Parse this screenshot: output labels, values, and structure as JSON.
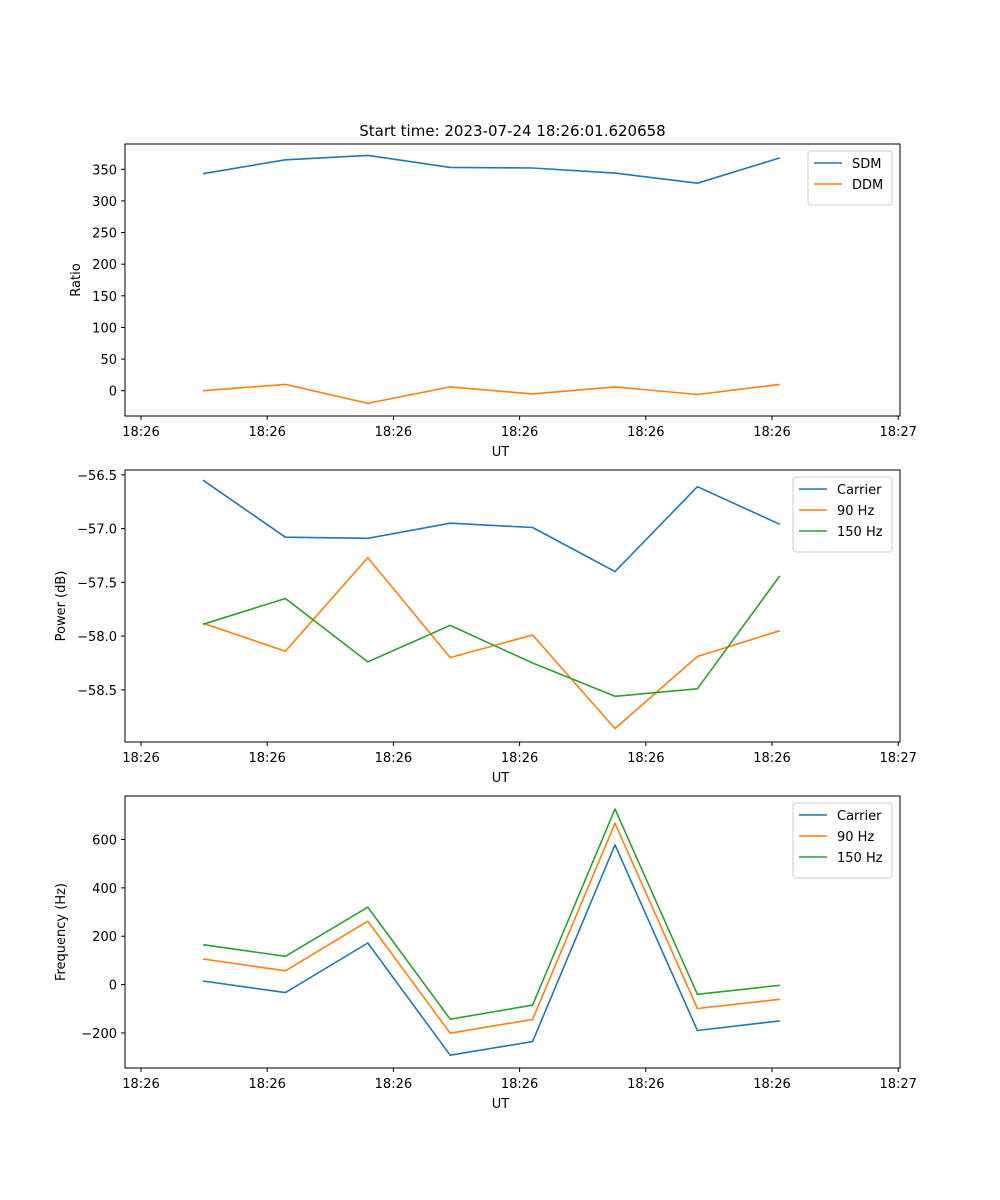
{
  "figure": {
    "title": "Start time: 2023-07-24 18:26:01.620658"
  },
  "colors": {
    "blue": "#1f77b4",
    "orange": "#ff7f0e",
    "green": "#2ca02c"
  },
  "chart_data": [
    {
      "type": "line",
      "xlabel": "UT",
      "ylabel": "Ratio",
      "x_tick_labels": [
        "18:26",
        "18:26",
        "18:26",
        "18:26",
        "18:26",
        "18:26",
        "18:27"
      ],
      "x_points": 8,
      "ylim": [
        -40,
        390
      ],
      "yticks": [
        0,
        50,
        100,
        150,
        200,
        250,
        300,
        350
      ],
      "ytick_labels": [
        "0",
        "50",
        "100",
        "150",
        "200",
        "250",
        "300",
        "350"
      ],
      "legend": "top-right",
      "series": [
        {
          "name": "SDM",
          "color": "#1f77b4",
          "values": [
            343,
            365,
            372,
            353,
            352,
            344,
            328,
            368
          ]
        },
        {
          "name": "DDM",
          "color": "#ff7f0e",
          "values": [
            0,
            10,
            -20,
            6,
            -5,
            6,
            -6,
            10
          ]
        }
      ]
    },
    {
      "type": "line",
      "xlabel": "UT",
      "ylabel": "Power (dB)",
      "x_tick_labels": [
        "18:26",
        "18:26",
        "18:26",
        "18:26",
        "18:26",
        "18:26",
        "18:27"
      ],
      "x_points": 8,
      "ylim": [
        -58.985,
        -56.455
      ],
      "yticks": [
        -58.5,
        -58.0,
        -57.5,
        -57.0,
        -56.5
      ],
      "ytick_labels": [
        "−58.5",
        "−58.0",
        "−57.5",
        "−57.0",
        "−56.5"
      ],
      "legend": "top-right",
      "series": [
        {
          "name": "Carrier",
          "color": "#1f77b4",
          "values": [
            -56.55,
            -57.08,
            -57.09,
            -56.95,
            -56.99,
            -57.4,
            -56.61,
            -56.96
          ]
        },
        {
          "name": "90 Hz",
          "color": "#ff7f0e",
          "values": [
            -57.88,
            -58.14,
            -57.27,
            -58.2,
            -57.99,
            -58.86,
            -58.19,
            -57.95
          ]
        },
        {
          "name": "150 Hz",
          "color": "#2ca02c",
          "values": [
            -57.89,
            -57.65,
            -58.24,
            -57.9,
            -58.25,
            -58.56,
            -58.49,
            -57.44
          ]
        }
      ]
    },
    {
      "type": "line",
      "xlabel": "UT",
      "ylabel": "Frequency (Hz)",
      "x_tick_labels": [
        "18:26",
        "18:26",
        "18:26",
        "18:26",
        "18:26",
        "18:26",
        "18:27"
      ],
      "x_points": 8,
      "ylim": [
        -345,
        780
      ],
      "yticks": [
        -200,
        0,
        200,
        400,
        600
      ],
      "ytick_labels": [
        "−200",
        "0",
        "200",
        "400",
        "600"
      ],
      "legend": "top-right",
      "series": [
        {
          "name": "Carrier",
          "color": "#1f77b4",
          "values": [
            15,
            -33,
            172,
            -292,
            -236,
            578,
            -190,
            -150
          ]
        },
        {
          "name": "90 Hz",
          "color": "#ff7f0e",
          "values": [
            106,
            57,
            262,
            -201,
            -144,
            667,
            -99,
            -61
          ]
        },
        {
          "name": "150 Hz",
          "color": "#2ca02c",
          "values": [
            165,
            117,
            320,
            -143,
            -85,
            726,
            -40,
            -3
          ]
        }
      ]
    }
  ]
}
